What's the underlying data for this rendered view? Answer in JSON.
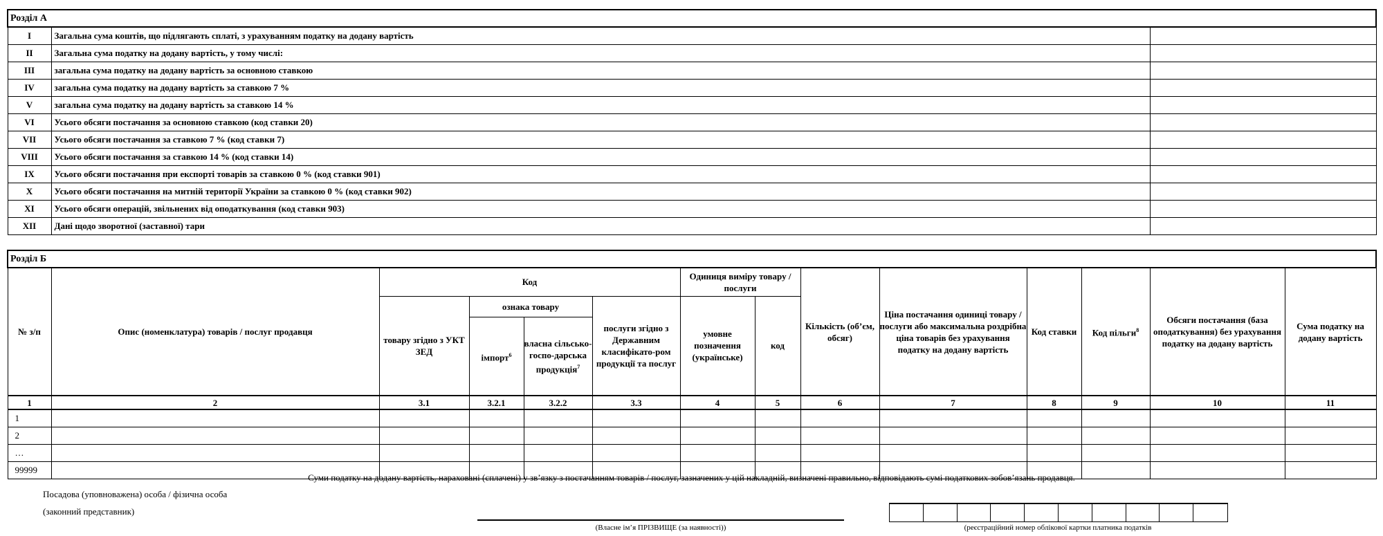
{
  "section_a": {
    "title": "Розділ А",
    "rows": [
      {
        "num": "I",
        "text": "Загальна сума коштів, що підлягають сплаті, з урахуванням податку на додану вартість"
      },
      {
        "num": "II",
        "text": "Загальна сума податку на додану вартість, у тому числі:"
      },
      {
        "num": "III",
        "text": "загальна сума податку на додану вартість за основною ставкою"
      },
      {
        "num": "IV",
        "text": "загальна сума податку на додану вартість за ставкою 7 %"
      },
      {
        "num": "V",
        "text": "загальна сума податку на додану вартість за ставкою 14 %"
      },
      {
        "num": "VI",
        "text": "Усього обсяги постачання за основною ставкою (код ставки 20)"
      },
      {
        "num": "VII",
        "text": "Усього обсяги постачання за ставкою 7 % (код ставки 7)"
      },
      {
        "num": "VIII",
        "text": "Усього обсяги постачання за ставкою 14 % (код ставки 14)"
      },
      {
        "num": "IX",
        "text": "Усього обсяги постачання при експорті товарів за ставкою 0 % (код ставки 901)"
      },
      {
        "num": "X",
        "text": "Усього обсяги постачання на митній території України за ставкою 0 % (код ставки 902)"
      },
      {
        "num": "XI",
        "text": "Усього обсяги операцій, звільнених від оподаткування (код ставки 903)"
      },
      {
        "num": "XII",
        "text": "Дані щодо зворотної (заставної) тари"
      }
    ]
  },
  "section_b": {
    "title": "Розділ Б",
    "headers": {
      "num": "№ з/п",
      "desc": "Опис (номенклатура) товарів / послуг продавця",
      "code": "Код",
      "code_uktzed": "товару згідно з УКТ ЗЕД",
      "sign": "ознака товару",
      "import": "імпорт",
      "import_sup": "6",
      "own": "власна сільсько-госпо-дарська продукція",
      "own_sup": "7",
      "services": "послуги згідно з Державним класифікато-ром продукції та послуг",
      "unit": "Одиниця виміру товару / послуги",
      "unit_name": "умовне позначення (українське)",
      "unit_code": "код",
      "qty": "Кількість (об’єм, обсяг)",
      "price": "Ціна постачання одиниці товару / послуги або максимальна роздрібна ціна товарів  без урахування податку на додану вартість",
      "rate": "Код ставки",
      "benefit": "Код пільги",
      "benefit_sup": "8",
      "volume": "Обсяги постачання (база оподаткування) без урахування податку на додану вартість",
      "tax": "Сума податку на додану вартість"
    },
    "index": [
      "1",
      "2",
      "3.1",
      "3.2.1",
      "3.2.2",
      "3.3",
      "4",
      "5",
      "6",
      "7",
      "8",
      "9",
      "10",
      "11"
    ],
    "rows": [
      "1",
      "2",
      "…",
      "99999"
    ]
  },
  "footer": {
    "statement": "Суми податку на додану вартість, нараховані (сплачені) у зв’язку з постачанням товарів / послуг, зазначених у цій накладній, визначені правильно, відповідають сумі податкових зобов’язань продавця.",
    "person": "Посадова (уповноважена) особа / фізична особа",
    "representative": "(законний представник)",
    "name_label": "(Власне ім’я ПРІЗВИЩЕ (за наявності))",
    "reg_label": "(реєстраційний номер облікової картки платника податків"
  }
}
